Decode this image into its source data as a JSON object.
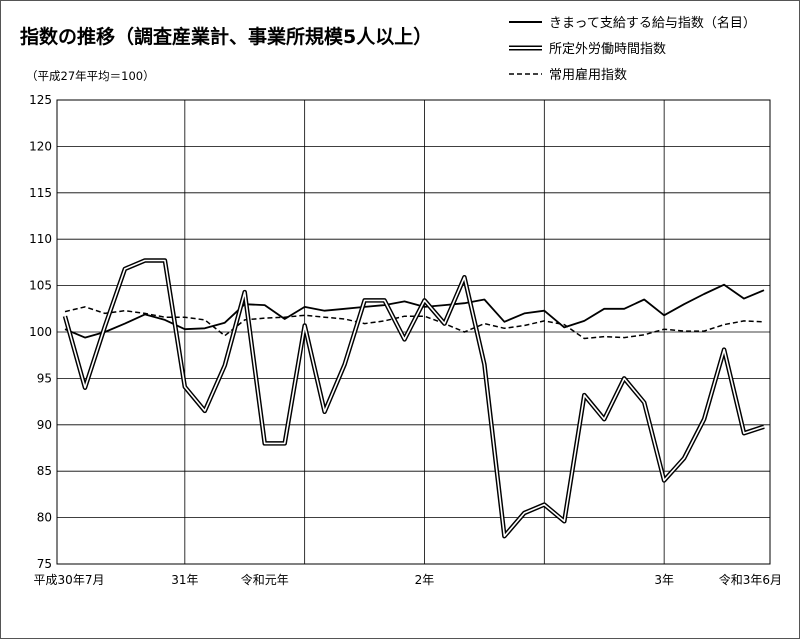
{
  "chart_data": {
    "type": "line",
    "title": "指数の推移（調査産業計、事業所規模5人以上）",
    "subtitle": "（平成27年平均＝100）",
    "ylim": [
      75,
      125
    ],
    "yticks": [
      75,
      80,
      85,
      90,
      95,
      100,
      105,
      110,
      115,
      120,
      125
    ],
    "grid": true,
    "legend_position": "top-right",
    "x_count": 36,
    "x_tick_labels": [
      {
        "index": 0,
        "label": "平成30年7月"
      },
      {
        "index": 6,
        "label": "31年"
      },
      {
        "index": 10,
        "label": "令和元年"
      },
      {
        "index": 18,
        "label": "2年"
      },
      {
        "index": 30,
        "label": "3年"
      },
      {
        "index": 35,
        "label": "令和3年6月"
      }
    ],
    "x_gridline_indices": [
      0,
      6,
      12,
      18,
      24,
      30,
      35
    ],
    "series": [
      {
        "name": "きまって支給する給与指数（名目）",
        "style": "solid",
        "values": [
          100.3,
          99.4,
          100.0,
          100.9,
          101.9,
          101.3,
          100.3,
          100.4,
          101.0,
          103.0,
          102.9,
          101.4,
          102.7,
          102.3,
          102.5,
          102.7,
          102.9,
          103.3,
          102.7,
          102.9,
          103.1,
          103.5,
          101.1,
          102.0,
          102.3,
          100.5,
          101.2,
          102.5,
          102.5,
          103.5,
          101.8,
          103.0,
          104.1,
          105.1,
          103.6,
          104.5
        ]
      },
      {
        "name": "所定外労働時間指数",
        "style": "double",
        "values": [
          101.7,
          94.0,
          100.6,
          106.8,
          107.7,
          107.7,
          94.1,
          91.5,
          96.4,
          104.3,
          88.0,
          88.0,
          100.7,
          91.4,
          96.5,
          103.4,
          103.4,
          99.2,
          103.4,
          100.9,
          105.9,
          96.5,
          78.0,
          80.5,
          81.4,
          79.6,
          93.2,
          90.6,
          95.0,
          92.4,
          84.0,
          86.4,
          90.6,
          98.1,
          89.1,
          89.8
        ]
      },
      {
        "name": "常用雇用指数",
        "style": "dashed",
        "values": [
          102.2,
          102.7,
          102.0,
          102.3,
          102.0,
          101.6,
          101.6,
          101.3,
          99.6,
          101.3,
          101.5,
          101.6,
          101.8,
          101.6,
          101.4,
          100.9,
          101.2,
          101.7,
          101.7,
          100.9,
          100.0,
          100.9,
          100.4,
          100.7,
          101.2,
          100.8,
          99.3,
          99.5,
          99.4,
          99.7,
          100.3,
          100.1,
          100.1,
          100.8,
          101.2,
          101.1
        ]
      }
    ]
  }
}
